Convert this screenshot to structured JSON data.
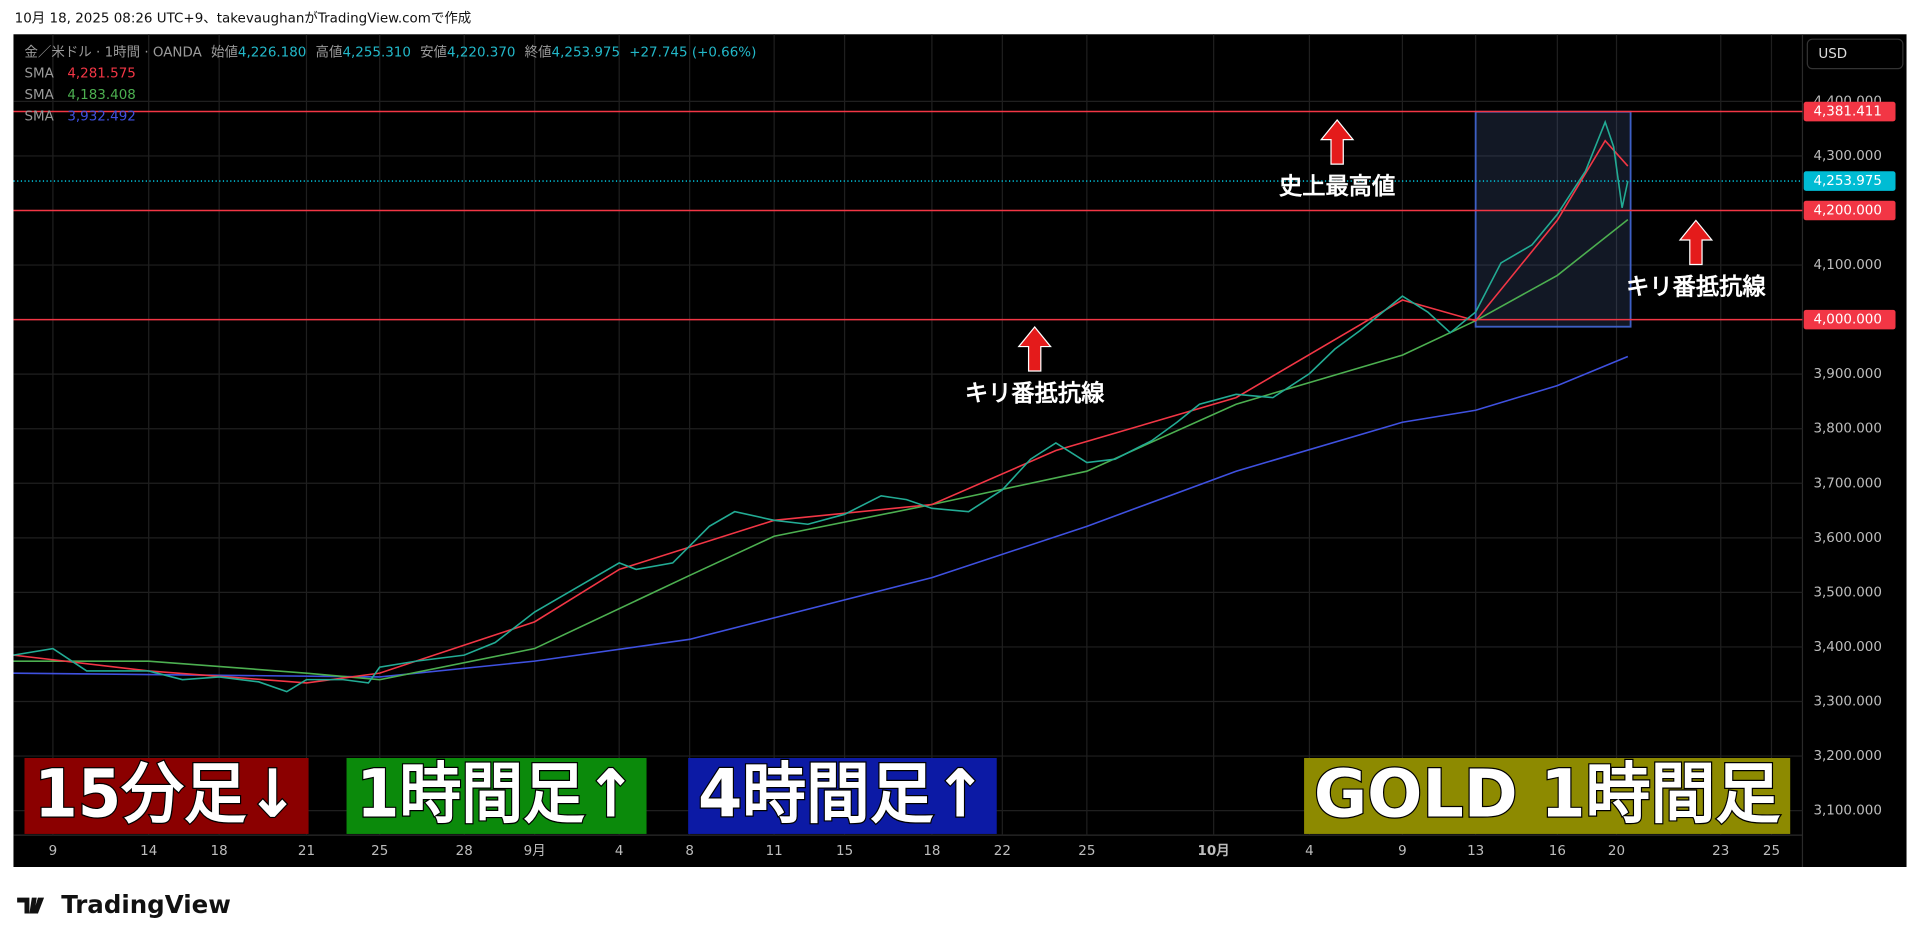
{
  "caption": "10月 18, 2025 08:26 UTC+9、takevaughanがTradingView.comで作成",
  "brand": "TradingView",
  "chart_data": {
    "type": "line",
    "currency": "USD",
    "ohlc": {
      "symbol": "金／米ドル · 1時間 · OANDA",
      "items": [
        {
          "label": "始値",
          "value": "4,226.180"
        },
        {
          "label": "高値",
          "value": "4,255.310"
        },
        {
          "label": "安値",
          "value": "4,220.370"
        },
        {
          "label": "終値",
          "value": "4,253.975"
        }
      ],
      "change": "+27.745 (+0.66%)"
    },
    "xlim": [
      0,
      63.5
    ],
    "xticks": [
      {
        "value": 1.4,
        "label": "9"
      },
      {
        "value": 4.8,
        "label": "14"
      },
      {
        "value": 7.3,
        "label": "18"
      },
      {
        "value": 10.4,
        "label": "21"
      },
      {
        "value": 13.0,
        "label": "25"
      },
      {
        "value": 16.0,
        "label": "28"
      },
      {
        "value": 18.5,
        "label": "9月"
      },
      {
        "value": 21.5,
        "label": "4"
      },
      {
        "value": 24.0,
        "label": "8"
      },
      {
        "value": 27.0,
        "label": "11"
      },
      {
        "value": 29.5,
        "label": "15"
      },
      {
        "value": 32.6,
        "label": "18"
      },
      {
        "value": 35.1,
        "label": "22"
      },
      {
        "value": 38.1,
        "label": "25"
      },
      {
        "value": 42.6,
        "label": "10月"
      },
      {
        "value": 46.0,
        "label": "4"
      },
      {
        "value": 49.3,
        "label": "9"
      },
      {
        "value": 51.9,
        "label": "13"
      },
      {
        "value": 54.8,
        "label": "16"
      },
      {
        "value": 56.9,
        "label": "20"
      },
      {
        "value": 60.6,
        "label": "23"
      },
      {
        "value": 62.4,
        "label": "25"
      }
    ],
    "ylim": [
      3055,
      4523
    ],
    "yticks": [
      {
        "value": 3100,
        "label": "3,100.000"
      },
      {
        "value": 3200,
        "label": "3,200.000"
      },
      {
        "value": 3300,
        "label": "3,300.000"
      },
      {
        "value": 3400,
        "label": "3,400.000"
      },
      {
        "value": 3500,
        "label": "3,500.000"
      },
      {
        "value": 3600,
        "label": "3,600.000"
      },
      {
        "value": 3700,
        "label": "3,700.000"
      },
      {
        "value": 3800,
        "label": "3,800.000"
      },
      {
        "value": 3900,
        "label": "3,900.000"
      },
      {
        "value": 4000,
        "label": "4,000.000"
      },
      {
        "value": 4100,
        "label": "4,100.000"
      },
      {
        "value": 4200,
        "label": "4,200.000"
      },
      {
        "value": 4300,
        "label": "4,300.000"
      },
      {
        "value": 4400,
        "label": "4,400.000"
      }
    ],
    "grid": true,
    "series": [
      {
        "color": "#22ab94",
        "x": [
          0,
          1.4,
          2.6,
          4.8,
          6.0,
          7.3,
          8.7,
          9.7,
          10.4,
          11.7,
          12.6,
          13.0,
          14.3,
          16.0,
          17.1,
          18.5,
          20.0,
          21.5,
          22.1,
          23.4,
          24.7,
          25.6,
          27.0,
          28.2,
          29.5,
          30.8,
          31.7,
          32.6,
          33.9,
          35.1,
          36.1,
          37.0,
          38.1,
          39.1,
          40.4,
          41.3,
          42.1,
          43.4,
          44.7,
          46.0,
          46.9,
          47.8,
          49.3,
          50.2,
          51.0,
          51.9,
          52.8,
          53.9,
          54.8,
          55.8,
          56.5,
          56.8,
          57.1,
          57.3
        ],
        "values": [
          3385,
          3397,
          3356,
          3356,
          3340,
          3345,
          3336,
          3318,
          3340,
          3340,
          3334,
          3363,
          3374,
          3385,
          3408,
          3464,
          3509,
          3554,
          3542,
          3554,
          3621,
          3648,
          3632,
          3625,
          3643,
          3677,
          3670,
          3654,
          3648,
          3688,
          3744,
          3774,
          3738,
          3744,
          3778,
          3812,
          3845,
          3863,
          3857,
          3901,
          3946,
          3980,
          4043,
          4014,
          3976,
          4014,
          4104,
          4137,
          4193,
          4272,
          4362,
          4317,
          4205,
          4253.975
        ]
      },
      {
        "name": "SMA",
        "legend_value": "4,281.575",
        "color": "#f23645",
        "x": [
          0,
          4.8,
          10.4,
          13.0,
          18.5,
          21.5,
          27.0,
          32.6,
          37.0,
          43.4,
          49.3,
          51.9,
          54.8,
          56.5,
          57.3
        ],
        "values": [
          3385,
          3356,
          3334,
          3352,
          3446,
          3542,
          3632,
          3661,
          3760,
          3857,
          4036,
          3998,
          4182,
          4328,
          4281.575
        ]
      },
      {
        "name": "SMA",
        "legend_value": "4,183.408",
        "color": "#4caf50",
        "x": [
          0,
          4.8,
          10.4,
          13.0,
          18.5,
          24.0,
          27.0,
          32.6,
          38.1,
          43.4,
          49.3,
          51.9,
          54.8,
          57.3
        ],
        "values": [
          3374,
          3374,
          3352,
          3340,
          3397,
          3531,
          3603,
          3661,
          3722,
          3845,
          3935,
          3998,
          4081,
          4183.408
        ]
      },
      {
        "name": "SMA",
        "legend_value": "3,932.492",
        "color": "#3f51e0",
        "x": [
          0,
          13.0,
          18.5,
          24.0,
          32.6,
          38.1,
          43.4,
          49.3,
          51.9,
          54.8,
          57.3
        ],
        "values": [
          3352,
          3345,
          3374,
          3414,
          3527,
          3621,
          3722,
          3812,
          3834,
          3879,
          3932.492
        ]
      }
    ],
    "hlines": [
      {
        "value": 4381.411,
        "label": "4,381.411",
        "color": "#f23645"
      },
      {
        "value": 4200,
        "label": "4,200.000",
        "color": "#f23645"
      },
      {
        "value": 4000,
        "label": "4,000.000",
        "color": "#f23645"
      }
    ],
    "last_price": {
      "value": 4253.975,
      "label": "4,253.975",
      "color": "#00bcd4"
    },
    "box": {
      "x": [
        51.9,
        57.4
      ],
      "y": [
        3987,
        4381
      ]
    },
    "annotations": [
      "史上最高値",
      "キリ番抵抗線",
      "キリ番抵抗線"
    ],
    "banners": [
      {
        "text": "15分足↓",
        "color": "#8b0000"
      },
      {
        "text": "1時間足↑",
        "color": "#0b8a0b"
      },
      {
        "text": "4時間足↑",
        "color": "#0c1aa5"
      },
      {
        "text": "GOLD 1時間足",
        "color": "#8d8a00"
      }
    ]
  }
}
